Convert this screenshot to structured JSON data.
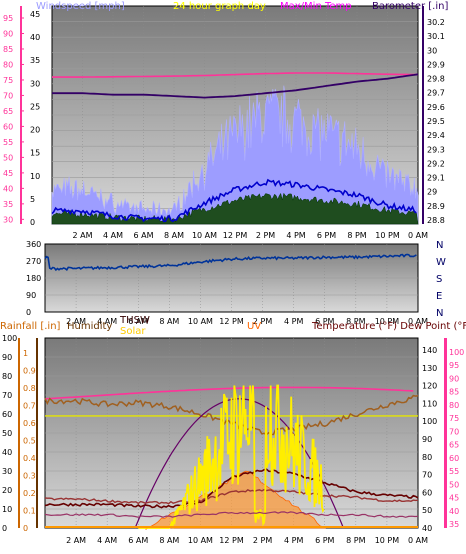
{
  "top_chart": {
    "legend": {
      "windspeed": "Windspeed [mph]",
      "title": "24 hour graph day",
      "temp": "Max/Min Temp",
      "barometer": "Barometer [.in]"
    },
    "colors": {
      "windspeed_label": "#9b9bff",
      "title": "#ffff00",
      "temp_label": "#ff00ff",
      "barometer_label": "#330066",
      "left_axis": "#ff3399",
      "right_axis": "#330066"
    },
    "left_ticks": [
      "95",
      "90",
      "85",
      "80",
      "75",
      "70",
      "65",
      "60",
      "55",
      "50",
      "45",
      "40",
      "35",
      "30"
    ],
    "wind_ticks": [
      "45",
      "40",
      "35",
      "30",
      "25",
      "20",
      "15",
      "10",
      "5",
      "0"
    ],
    "right_ticks": [
      "30.2",
      "30.1",
      "30",
      "29.9",
      "29.8",
      "29.7",
      "29.6",
      "29.5",
      "29.4",
      "29.3",
      "29.2",
      "29.1",
      "29",
      "28.9",
      "28.8"
    ],
    "x_ticks": [
      "2 AM",
      "4 AM",
      "6 AM",
      "8 AM",
      "10 AM",
      "12 PM",
      "2 PM",
      "4 PM",
      "6 PM",
      "8 PM",
      "10 PM",
      "0 AM"
    ]
  },
  "dir_chart": {
    "y_ticks": [
      "360",
      "270",
      "180",
      "90",
      "0"
    ],
    "compass": [
      "N",
      "W",
      "S",
      "E",
      "N"
    ],
    "x_ticks": [
      "2 AM",
      "4 AM",
      "6 AM",
      "8 AM",
      "10 AM",
      "12 PM",
      "2 PM",
      "4 PM",
      "6 PM",
      "8 PM",
      "10 PM",
      "0 AM"
    ]
  },
  "bottom_chart": {
    "labels": {
      "rainfall": "Rainfall [.in]",
      "humidity": "Humidity",
      "thsw": "THSW",
      "solar": "Solar",
      "uv": "UV",
      "temperature": "Temperature (°F) Dew Point (°F)"
    },
    "colors": {
      "rainfall": "#cc6600",
      "humidity": "#663300",
      "thsw": "#330000",
      "solar": "#ffcc00",
      "uv": "#ff6600",
      "temperature": "#660000",
      "pink_axis": "#ff3399"
    },
    "rain_ticks": [
      "100",
      "90",
      "80",
      "70",
      "60",
      "50",
      "40",
      "30",
      "20",
      "10",
      "0"
    ],
    "humidity_ticks": [
      "1",
      "0.9",
      "0.8",
      "0.7",
      "0.6",
      "0.5",
      "0.4",
      "0.3",
      "0.2",
      "0.1",
      "0"
    ],
    "temp_ticks": [
      "140",
      "130",
      "120",
      "110",
      "100",
      "90",
      "80",
      "70",
      "60",
      "50",
      "40"
    ],
    "far_right_ticks": [
      "100",
      "95",
      "90",
      "85",
      "80",
      "75",
      "70",
      "65",
      "60",
      "55",
      "50",
      "45",
      "40",
      "35"
    ],
    "x_ticks": [
      "2 AM",
      "4 AM",
      "6 AM",
      "8 AM",
      "10 AM",
      "12 PM",
      "2 PM",
      "4 PM",
      "6 PM",
      "8 PM",
      "10 PM",
      "0 AM"
    ]
  },
  "chart_data": [
    {
      "type": "line",
      "title": "24 hour graph day",
      "x": [
        "2 AM",
        "4 AM",
        "6 AM",
        "8 AM",
        "10 AM",
        "12 PM",
        "2 PM",
        "4 PM",
        "6 PM",
        "8 PM",
        "10 PM",
        "0 AM"
      ],
      "series": [
        {
          "name": "Barometer [.in]",
          "values": [
            29.65,
            29.64,
            29.64,
            29.63,
            29.62,
            29.63,
            29.65,
            29.67,
            29.7,
            29.73,
            29.75,
            29.78
          ]
        },
        {
          "name": "Max/Min Temp",
          "values": [
            74.5,
            74.6,
            74.7,
            74.8,
            75.0,
            75.3,
            75.6,
            75.8,
            75.8,
            75.6,
            75.4,
            75.3
          ]
        },
        {
          "name": "Windspeed [mph]",
          "values": [
            4,
            2,
            1,
            1,
            7,
            12,
            15,
            14,
            12,
            10,
            6,
            4
          ]
        }
      ],
      "ylim_left": [
        28,
        97
      ],
      "ylim_right": [
        28.75,
        30.25
      ]
    },
    {
      "type": "line",
      "x": [
        "2 AM",
        "4 AM",
        "6 AM",
        "8 AM",
        "10 AM",
        "12 PM",
        "2 PM",
        "4 PM",
        "6 PM",
        "8 PM",
        "10 PM",
        "0 AM"
      ],
      "series": [
        {
          "name": "Wind direction",
          "values": [
            230,
            235,
            240,
            245,
            265,
            280,
            285,
            285,
            290,
            290,
            295,
            300
          ]
        }
      ],
      "ylim": [
        0,
        360
      ]
    },
    {
      "type": "line",
      "x": [
        "2 AM",
        "4 AM",
        "6 AM",
        "8 AM",
        "10 AM",
        "12 PM",
        "2 PM",
        "4 PM",
        "6 PM",
        "8 PM",
        "10 PM",
        "0 AM"
      ],
      "series": [
        {
          "name": "Humidity",
          "values": [
            67,
            65,
            66,
            64,
            60,
            55,
            50,
            52,
            55,
            60,
            65,
            69
          ]
        },
        {
          "name": "Temperature (°F)",
          "values": [
            53,
            53,
            52,
            52,
            54,
            68,
            72,
            70,
            65,
            60,
            58,
            57
          ]
        },
        {
          "name": "Dew Point (°F)",
          "values": [
            56,
            55,
            54,
            54,
            55,
            60,
            61,
            60,
            58,
            57,
            55,
            55
          ]
        },
        {
          "name": "Solar",
          "values": [
            0,
            0,
            0,
            0,
            30,
            60,
            80,
            50,
            25,
            0,
            0,
            0
          ]
        },
        {
          "name": "UV",
          "values": [
            0,
            0,
            0,
            0,
            0.8,
            2.5,
            4,
            2,
            0.5,
            0,
            0,
            0
          ]
        }
      ],
      "ylim_left": [
        0,
        100
      ],
      "ylim_right": [
        40,
        145
      ]
    }
  ]
}
